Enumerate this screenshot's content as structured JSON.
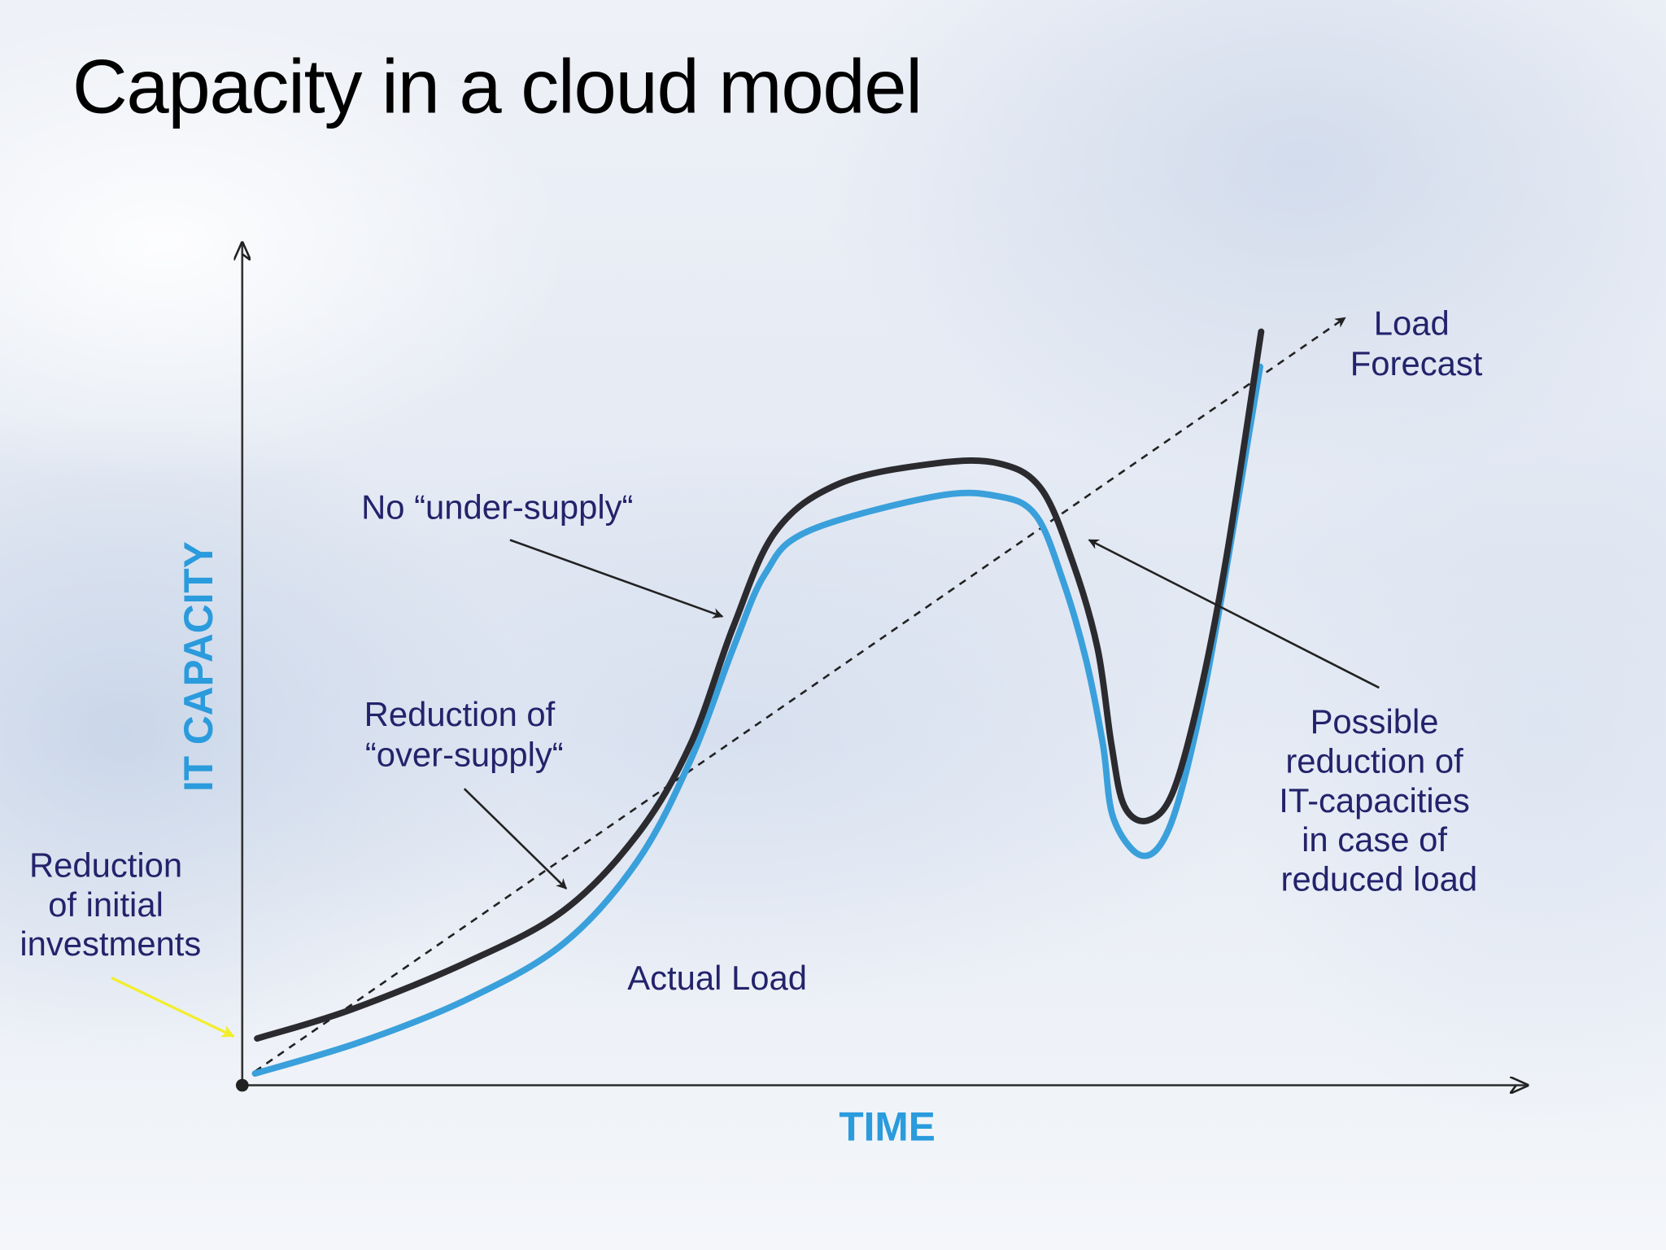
{
  "title": "Capacity in a cloud model",
  "axes": {
    "y_label": "IT CAPACITY",
    "x_label": "TIME"
  },
  "annotations": {
    "load_forecast": [
      "Load",
      "Forecast"
    ],
    "no_under_supply": "No “under-supply“",
    "over_supply": [
      "Reduction of",
      "“over-supply“"
    ],
    "initial_investments": [
      "Reduction",
      "of initial",
      "investments"
    ],
    "actual_load": "Actual Load",
    "possible_reduction": [
      "Possible",
      "reduction of",
      "IT-capacities",
      "in case of",
      "reduced load"
    ]
  },
  "colors": {
    "capacity_line": "#2b2b2f",
    "actual_load_line": "#3aa0db",
    "axis_label": "#2a9bdc",
    "annotation_text": "#23236b",
    "highlight_arrow": "#f2ee2a"
  }
}
